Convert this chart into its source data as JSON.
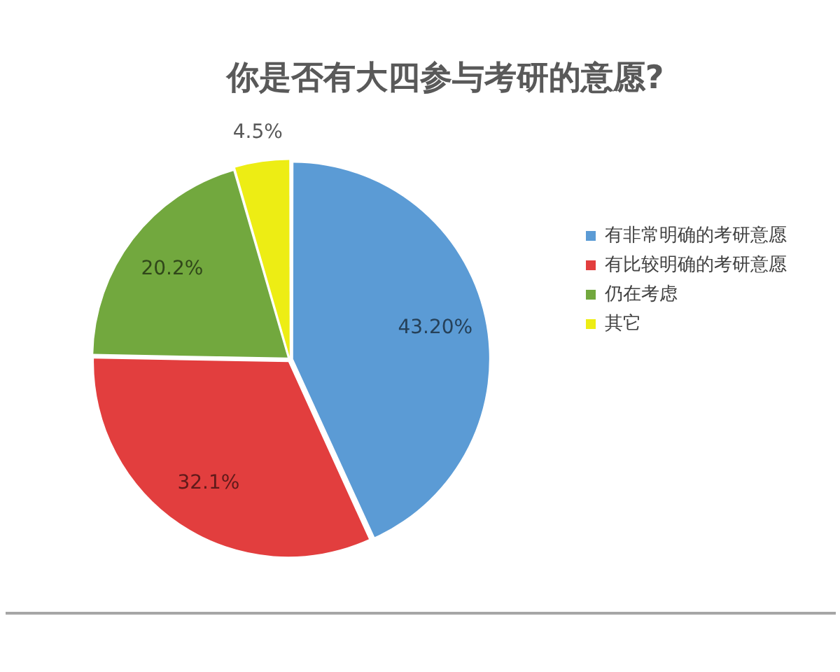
{
  "chart_data": {
    "type": "pie",
    "title": "你是否有大四参与考研的意愿?",
    "categories": [
      "有非常明确的考研意愿",
      "有比较明确的考研意愿",
      "仍在考虑",
      "其它"
    ],
    "values": [
      43.2,
      32.1,
      20.2,
      4.5
    ],
    "colors": [
      "#5b9bd5",
      "#e23e3e",
      "#72a83e",
      "#eded14"
    ],
    "value_labels": [
      "43.20%",
      "32.1%",
      "20.2%",
      "4.5%"
    ],
    "legend": "right"
  }
}
